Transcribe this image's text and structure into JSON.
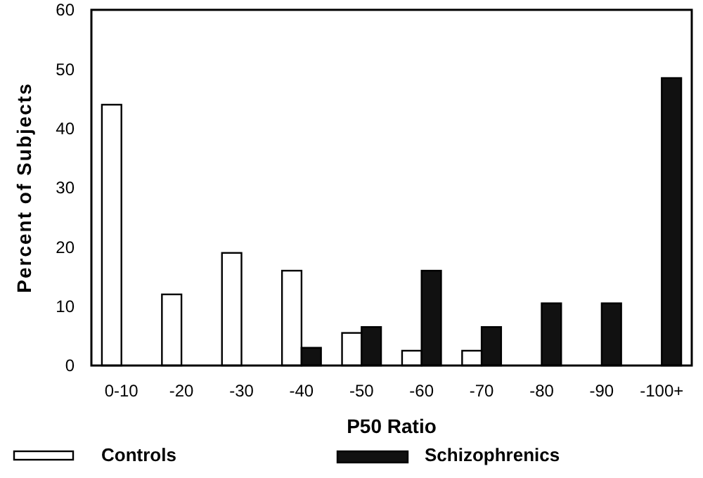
{
  "chart_data": {
    "type": "bar",
    "xlabel": "P50 Ratio",
    "ylabel": "Percent of Subjects",
    "categories": [
      "0-10",
      "-20",
      "-30",
      "-40",
      "-50",
      "-60",
      "-70",
      "-80",
      "-90",
      "-100+"
    ],
    "series": [
      {
        "name": "Controls",
        "color": "#ffffff",
        "values": [
          44,
          12,
          19,
          16,
          5.5,
          2.5,
          2.5,
          0,
          0,
          0
        ]
      },
      {
        "name": "Schizophrenics",
        "color": "#111111",
        "values": [
          0,
          0,
          0,
          3,
          6.5,
          16,
          6.5,
          10.5,
          10.5,
          48.5
        ]
      }
    ],
    "ylim": [
      0,
      60
    ],
    "yticks": [
      0,
      10,
      20,
      30,
      40,
      50,
      60
    ],
    "grid": false,
    "legend": "bottom"
  }
}
